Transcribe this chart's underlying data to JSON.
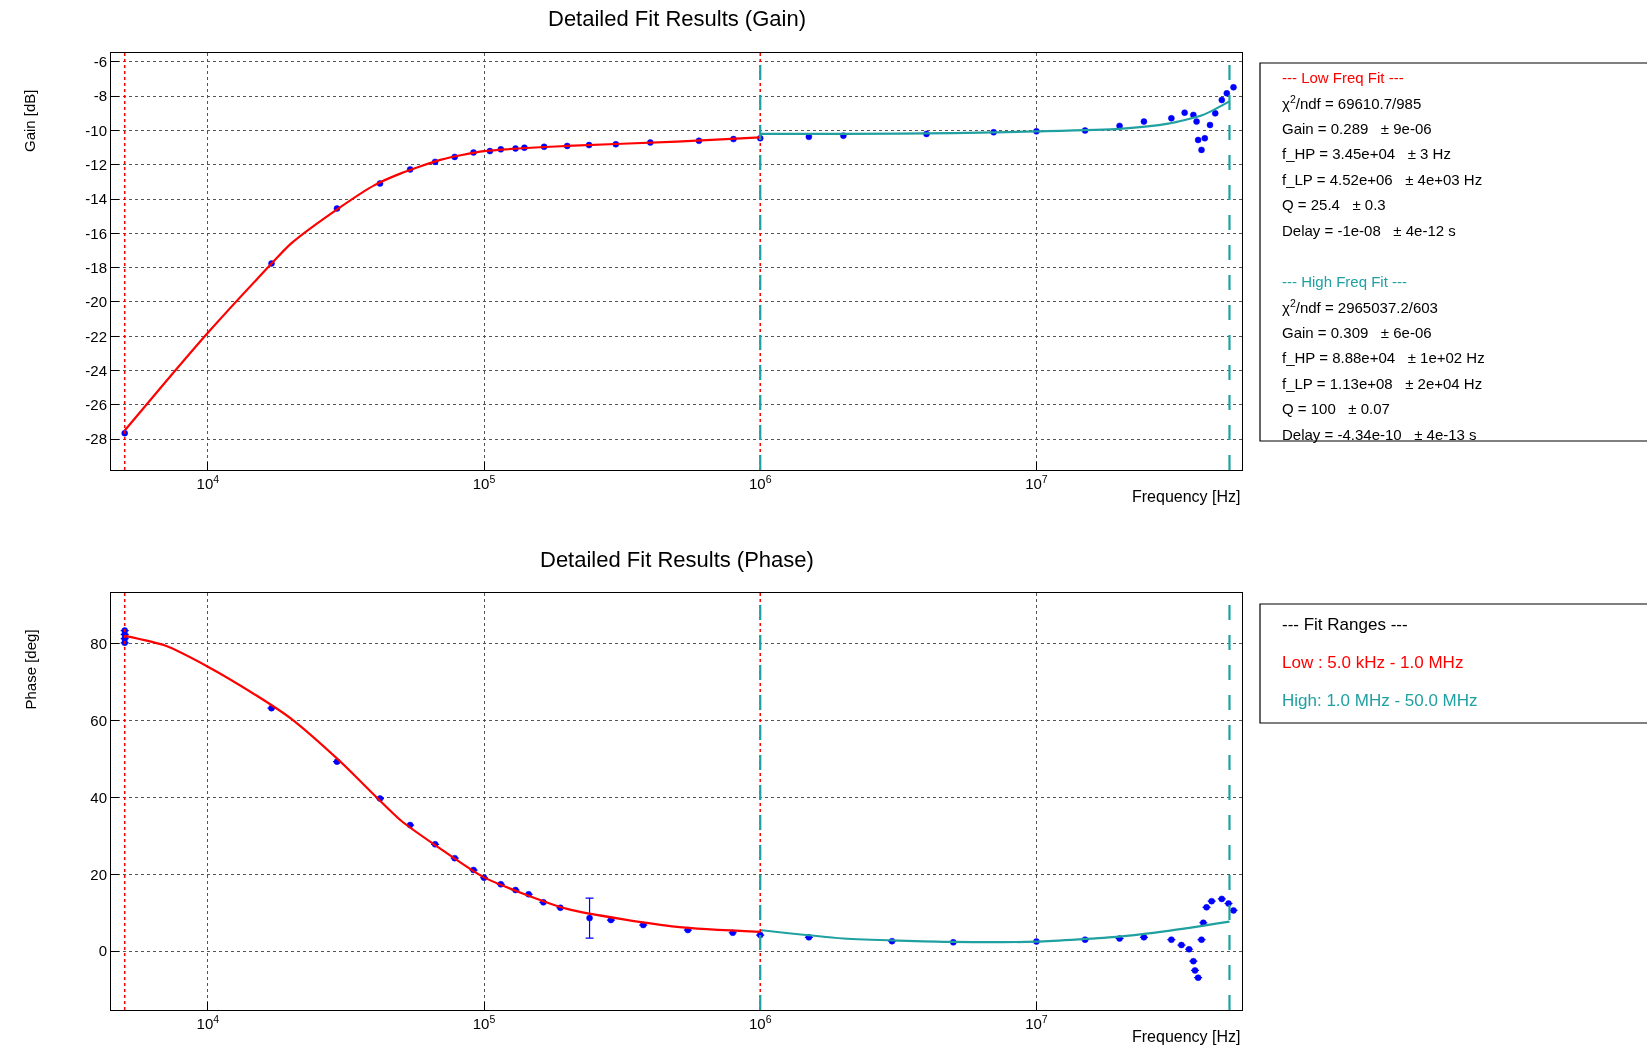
{
  "chart_data": [
    {
      "type": "scatter",
      "title": "Detailed Fit Results (Gain)",
      "xlabel": "Frequency [Hz]",
      "ylabel": "Gain [dB]",
      "log": "x",
      "grid": true,
      "xlim": [
        4460,
        55500000
      ],
      "xticks": [
        {
          "value": 10000,
          "label": "10$^{4}$"
        },
        {
          "value": 100000,
          "label": "10$^{5}$"
        },
        {
          "value": 1000000,
          "label": "10$^{6}$"
        },
        {
          "value": 10000000,
          "label": "10$^{7}$"
        }
      ],
      "ylim": [
        -29.8,
        -5.45
      ],
      "yticks": [
        -28,
        -26,
        -24,
        -22,
        -20,
        -18,
        -16,
        -14,
        -12,
        -10,
        -8,
        -6
      ],
      "series": [
        {
          "color": "#0000ff",
          "marker": "circle",
          "x": [
            5000,
            17000,
            29350,
            42000,
            54000,
            66500,
            78300,
            91600,
            105000,
            115000,
            130000,
            140000,
            165000,
            200000,
            240000,
            300000,
            400000,
            600000,
            800000,
            1000000,
            1500000,
            2000000,
            4000000,
            7000000,
            10000000,
            15000000,
            20000000,
            24500000,
            30800000,
            34400000,
            37000000,
            38000000,
            38500000,
            39600000,
            40700000,
            42500000,
            44400000,
            46900000,
            48900000,
            51700000
          ],
          "values": [
            -27.65,
            -17.76,
            -14.55,
            -13.09,
            -12.27,
            -11.83,
            -11.54,
            -11.28,
            -11.2,
            -11.1,
            -11.05,
            -11.0,
            -10.95,
            -10.9,
            -10.85,
            -10.8,
            -10.7,
            -10.6,
            -10.5,
            -10.45,
            -10.37,
            -10.3,
            -10.2,
            -10.1,
            -10.05,
            -10.0,
            -9.73,
            -9.48,
            -9.29,
            -8.96,
            -9.09,
            -9.48,
            -10.55,
            -11.13,
            -10.45,
            -9.68,
            -9.0,
            -8.22,
            -7.83,
            -7.48
          ]
        },
        {
          "type": "line",
          "color": "#ff0000",
          "x": [
            5000,
            7000,
            10000,
            15000,
            20000,
            30000,
            40000,
            50000,
            70000,
            100000,
            200000,
            500000,
            1000000
          ],
          "values": [
            -27.5,
            -24.7,
            -21.8,
            -18.7,
            -16.6,
            -14.5,
            -13.2,
            -12.5,
            -11.7,
            -11.2,
            -10.9,
            -10.65,
            -10.4
          ]
        },
        {
          "type": "line",
          "color": "#20a0a0",
          "x": [
            1000000,
            2000000,
            5000000,
            10000000,
            20000000,
            30000000,
            40000000,
            50000000
          ],
          "values": [
            -10.2,
            -10.2,
            -10.15,
            -10.05,
            -9.9,
            -9.6,
            -9.1,
            -8.3
          ]
        }
      ],
      "ref_lines": [
        {
          "axis": "x",
          "value": 5000,
          "color": "#ff0000",
          "line_style": "dotted"
        },
        {
          "axis": "x",
          "value": 1000000,
          "color": "#ff0000",
          "line_style": "dotted"
        },
        {
          "axis": "x",
          "value": 1000000,
          "color": "#20a0a0",
          "line_style": "dashed"
        },
        {
          "axis": "x",
          "value": 50000000,
          "color": "#20a0a0",
          "line_style": "dashed"
        }
      ],
      "annotations": [
        "--- Low Freq Fit ---",
        "χ$^{2}$/ndf = 69610.7/985",
        "Gain = 0.289   ± 9e-06",
        "f_HP = 3.45e+04   ± 3 Hz",
        "f_LP = 4.52e+06   ± 4e+03 Hz",
        "Q = 25.4   ± 0.3",
        "Delay = -1e-08   ± 4e-12 s",
        "--- High Freq Fit ---",
        "χ$^{2}$/ndf = 2965037.2/603",
        "Gain = 0.309   ± 6e-06",
        "f_HP = 8.88e+04   ± 1e+02 Hz",
        "f_LP = 1.13e+08   ± 2e+04 Hz",
        "Q = 100   ± 0.07",
        "Delay = -4.34e-10   ± 4e-13 s"
      ]
    },
    {
      "type": "scatter",
      "title": "Detailed Fit Results (Phase)",
      "xlabel": "Frequency [Hz]",
      "ylabel": "Phase [deg]",
      "log": "x",
      "grid": true,
      "xlim": [
        4460,
        55500000
      ],
      "xticks": [
        {
          "value": 10000,
          "label": "10$^{4}$"
        },
        {
          "value": 100000,
          "label": "10$^{5}$"
        },
        {
          "value": 1000000,
          "label": "10$^{6}$"
        },
        {
          "value": 10000000,
          "label": "10$^{7}$"
        }
      ],
      "ylim": [
        -15.3,
        93.3
      ],
      "yticks": [
        0,
        20,
        40,
        60,
        80
      ],
      "series": [
        {
          "color": "#0000ff",
          "marker": "circle",
          "x": [
            5000,
            5000,
            5000,
            5000,
            17000,
            29350,
            42000,
            54000,
            66500,
            78300,
            91600,
            100000,
            115000,
            130000,
            145000,
            164000,
            189000,
            241000,
            288000,
            377000,
            547000,
            795000,
            1000000,
            1500000,
            3000000,
            5000000,
            10000000,
            15000000,
            20000000,
            24500000,
            30800000,
            33500000,
            35700000,
            37000000,
            37500000,
            38500000,
            39600000,
            40200000,
            41300000,
            43100000,
            46900000,
            49600000,
            51700000
          ],
          "values": [
            80.2,
            81.3,
            82.4,
            83.4,
            63.2,
            49.3,
            39.7,
            32.8,
            27.8,
            24.2,
            21.1,
            19.1,
            17.4,
            15.9,
            14.8,
            12.7,
            11.3,
            8.6,
            8.1,
            6.8,
            5.5,
            4.8,
            4.2,
            3.6,
            2.6,
            2.3,
            2.5,
            3.0,
            3.3,
            3.6,
            3.0,
            1.6,
            0.5,
            -2.6,
            -5.0,
            -6.9,
            3.0,
            7.4,
            11.4,
            13.0,
            13.6,
            12.4,
            10.6
          ],
          "errors": [
            null,
            null,
            null,
            null,
            null,
            null,
            null,
            null,
            null,
            null,
            null,
            null,
            null,
            null,
            null,
            null,
            null,
            5.2,
            null,
            null,
            null,
            null,
            null,
            null,
            null,
            null,
            null,
            null,
            null,
            null,
            null,
            null,
            null,
            null,
            null,
            null,
            null,
            null,
            null,
            null,
            null,
            null,
            null
          ]
        },
        {
          "type": "line",
          "color": "#ff0000",
          "x": [
            5000,
            7000,
            10000,
            15000,
            20000,
            30000,
            50000,
            70000,
            100000,
            200000,
            500000,
            1000000
          ],
          "values": [
            82,
            79.5,
            74,
            66.5,
            60.5,
            49.5,
            34,
            26.5,
            19.2,
            11.0,
            6.3,
            5.0
          ]
        },
        {
          "type": "line",
          "color": "#20a0a0",
          "x": [
            1000000,
            2000000,
            5000000,
            10000000,
            20000000,
            30000000,
            50000000
          ],
          "values": [
            5.5,
            3.3,
            2.4,
            2.5,
            3.8,
            5.3,
            7.7
          ]
        }
      ],
      "ref_lines": [
        {
          "axis": "x",
          "value": 5000,
          "color": "#ff0000",
          "line_style": "dotted"
        },
        {
          "axis": "x",
          "value": 1000000,
          "color": "#ff0000",
          "line_style": "dotted"
        },
        {
          "axis": "x",
          "value": 1000000,
          "color": "#20a0a0",
          "line_style": "dashed"
        },
        {
          "axis": "x",
          "value": 50000000,
          "color": "#20a0a0",
          "line_style": "dashed"
        }
      ],
      "annotations": [
        "--- Fit Ranges ---",
        "Low : 5.0 kHz - 1.0 MHz",
        "High: 1.0 MHz - 50.0 MHz"
      ]
    }
  ]
}
